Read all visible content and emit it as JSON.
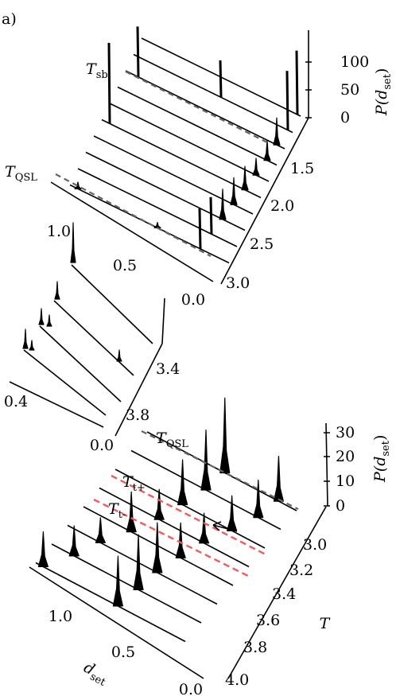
{
  "panel_label": "a)",
  "chart_data": [
    {
      "type": "3d-waterfall",
      "panel": "top",
      "ylabel": "P(d_set)",
      "ylabel_parts": {
        "main": "P(d",
        "sub": "set",
        "close": ")"
      },
      "z_ticks": [
        "0",
        "50",
        "100"
      ],
      "t_ticks": [
        "1.5",
        "2.0",
        "2.5",
        "3.0"
      ],
      "d_ticks": [
        "1.0",
        "0.5",
        "0.0"
      ],
      "annotations": [
        {
          "text": "T",
          "sub": "sb",
          "line": "grey-dashed"
        },
        {
          "text": "T",
          "sub": "QSL",
          "line": "grey-dashed"
        }
      ],
      "series": [
        {
          "peaks": [
            {
              "d": 0.02,
              "h": 95
            }
          ]
        },
        {
          "peaks": [
            {
              "d": 0.45,
              "h": 55
            },
            {
              "d": 0.03,
              "h": 88
            }
          ]
        },
        {
          "peaks": [
            {
              "d": 0.92,
              "h": 75
            },
            {
              "d": 0.05,
              "h": 40
            }
          ]
        },
        {
          "peaks": [
            {
              "d": 0.06,
              "h": 30
            }
          ]
        },
        {
          "peaks": [
            {
              "d": 0.08,
              "h": 25
            }
          ]
        },
        {
          "peaks": [
            {
              "d": 0.95,
              "h": 120
            },
            {
              "d": 0.1,
              "h": 35
            }
          ]
        },
        {
          "peaks": [
            {
              "d": 0.12,
              "h": 40
            }
          ]
        },
        {
          "peaks": [
            {
              "d": 0.14,
              "h": 45
            }
          ]
        },
        {
          "peaks": [
            {
              "d": 0.16,
              "h": 55
            }
          ]
        },
        {
          "peaks": [
            {
              "d": 0.95,
              "h": 10
            },
            {
              "d": 0.45,
              "h": 8
            },
            {
              "d": 0.18,
              "h": 60
            }
          ]
        }
      ]
    },
    {
      "type": "3d-waterfall",
      "panel": "middle-inset",
      "t_ticks": [
        "3.4",
        "3.8"
      ],
      "d_ticks": [
        "0.4",
        "0.0"
      ]
    },
    {
      "type": "3d-waterfall",
      "panel": "bottom",
      "ylabel": "P(d_set)",
      "ylabel_parts": {
        "main": "P(d",
        "sub": "set",
        "close": ")"
      },
      "xlabel": "d_set",
      "xlabel_parts": {
        "main": "d",
        "sub": "set"
      },
      "tlabel": "T",
      "z_ticks": [
        "0",
        "10",
        "20",
        "30"
      ],
      "t_ticks": [
        "3.0",
        "3.2",
        "3.4",
        "3.6",
        "3.8",
        "4.0"
      ],
      "d_ticks": [
        "1.0",
        "0.5",
        "0.0"
      ],
      "annotations": [
        {
          "text": "T",
          "sub": "QSL",
          "line": "grey-dashed"
        },
        {
          "text": "T",
          "sub": "t+",
          "line": "red-dashed"
        },
        {
          "text": "T",
          "sub": "t-",
          "line": "red-dashed"
        }
      ],
      "colors": {
        "red_dashed": "#f25b5b",
        "grey_dashed": "#666666"
      },
      "series": [
        {
          "peaks": [
            {
              "d": 0.48,
              "h": 30
            },
            {
              "d": 0.12,
              "h": 18
            }
          ]
        },
        {
          "peaks": [
            {
              "d": 0.5,
              "h": 24
            },
            {
              "d": 0.15,
              "h": 15
            }
          ]
        },
        {
          "peaks": [
            {
              "d": 0.55,
              "h": 18
            },
            {
              "d": 0.22,
              "h": 14
            }
          ]
        },
        {
          "peaks": [
            {
              "d": 0.6,
              "h": 12
            },
            {
              "d": 0.3,
              "h": 12
            }
          ]
        },
        {
          "peaks": [
            {
              "d": 0.68,
              "h": 16
            },
            {
              "d": 0.35,
              "h": 14
            }
          ]
        },
        {
          "peaks": [
            {
              "d": 0.78,
              "h": 10
            },
            {
              "d": 0.4,
              "h": 20
            }
          ]
        },
        {
          "peaks": [
            {
              "d": 0.85,
              "h": 12
            },
            {
              "d": 0.42,
              "h": 22
            }
          ]
        },
        {
          "peaks": [
            {
              "d": 0.95,
              "h": 14
            },
            {
              "d": 0.45,
              "h": 20
            }
          ]
        }
      ]
    }
  ]
}
